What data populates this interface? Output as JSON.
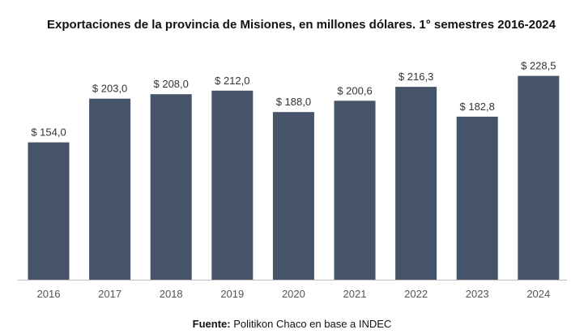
{
  "title": "Exportaciones de la provincia de Misiones, en millones dólares. 1° semestres 2016-2024",
  "source": {
    "label": "Fuente:",
    "text": " Politikon Chaco en base a INDEC"
  },
  "colors": {
    "bar": "#465469",
    "axis": "#bdbdbd",
    "tick_label": "#555555",
    "data_label": "#333333"
  },
  "chart_data": {
    "type": "bar",
    "title": "Exportaciones de la provincia de Misiones, en millones dólares. 1° semestres 2016-2024",
    "categories": [
      "2016",
      "2017",
      "2018",
      "2019",
      "2020",
      "2021",
      "2022",
      "2023",
      "2024"
    ],
    "values": [
      154.0,
      203.0,
      208.0,
      212.0,
      188.0,
      200.6,
      216.3,
      182.8,
      228.5
    ],
    "data_labels": [
      "$ 154,0",
      "$ 203,0",
      "$ 208,0",
      "$ 212,0",
      "$ 188,0",
      "$ 200,6",
      "$ 216,3",
      "$ 182,8",
      "$ 228,5"
    ],
    "xlabel": "",
    "ylabel": "",
    "ylim": [
      0,
      250
    ],
    "grid": false,
    "legend": "none"
  }
}
